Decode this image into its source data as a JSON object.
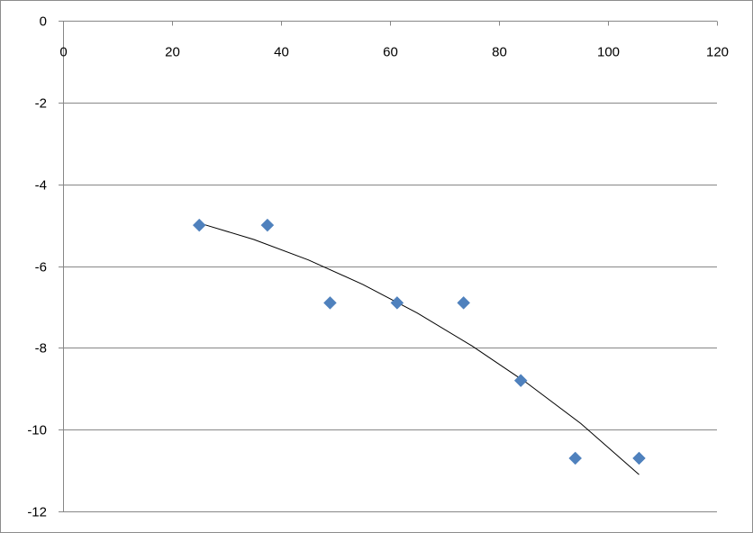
{
  "chart_data": {
    "type": "scatter",
    "title": "",
    "xlabel": "",
    "ylabel": "",
    "xlim": [
      0,
      120
    ],
    "ylim": [
      -12,
      0
    ],
    "x_ticks": [
      0,
      20,
      40,
      60,
      80,
      100,
      120
    ],
    "x_tick_labels": [
      "0",
      "20",
      "40",
      "60",
      "80",
      "100",
      "120"
    ],
    "y_ticks": [
      0,
      -2,
      -4,
      -6,
      -8,
      -10,
      -12
    ],
    "y_tick_labels": [
      "0",
      "-2",
      "-4",
      "-6",
      "-8",
      "-10",
      "-12"
    ],
    "grid": "horizontal",
    "legend": "none",
    "series": [
      {
        "marker": "diamond",
        "color": "#4f81bd",
        "x": [
          25,
          37.5,
          49,
          61.3,
          73.5,
          84,
          94,
          105.7
        ],
        "y": [
          -5,
          -5,
          -6.9,
          -6.9,
          -6.9,
          -8.8,
          -10.7,
          -10.7
        ]
      }
    ],
    "trendline": {
      "type": "polynomial",
      "color": "#000000",
      "x": [
        25,
        35,
        45,
        55,
        65,
        75,
        85,
        95,
        105.7
      ],
      "y": [
        -4.95,
        -5.35,
        -5.85,
        -6.45,
        -7.15,
        -7.95,
        -8.85,
        -9.85,
        -11.1
      ]
    }
  }
}
